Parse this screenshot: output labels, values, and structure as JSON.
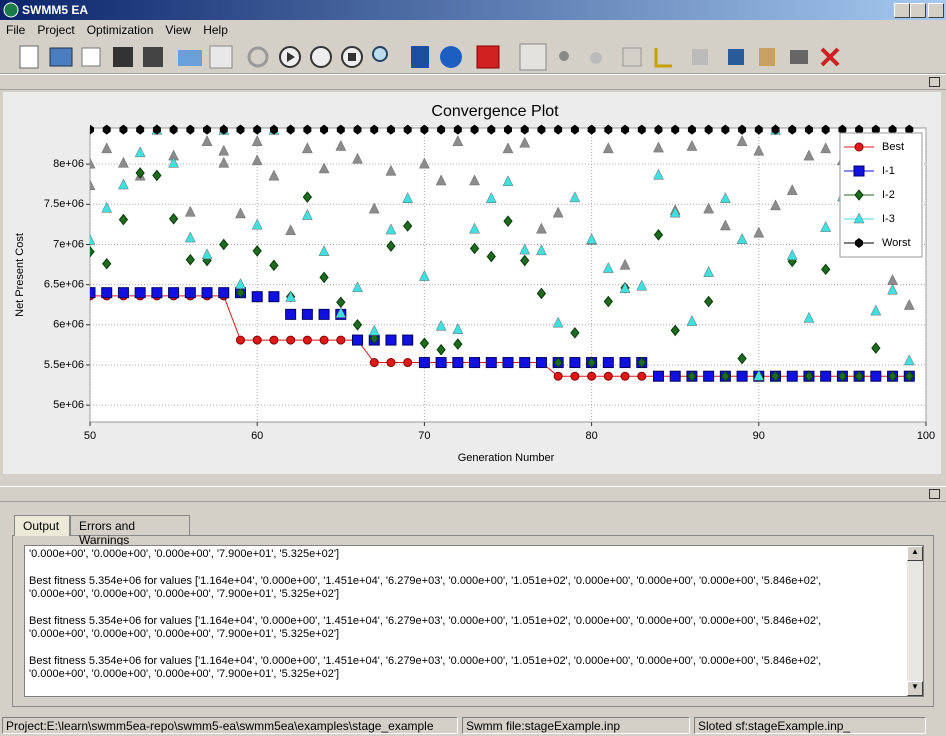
{
  "window": {
    "title": "SWMM5 EA"
  },
  "menu": [
    "File",
    "Project",
    "Optimization",
    "View",
    "Help"
  ],
  "chart_data": {
    "type": "scatter",
    "title": "Convergence Plot",
    "x_label": "Generation Number",
    "y_label": "Net Present Cost",
    "xlim": [
      50,
      100
    ],
    "xticks": [
      50,
      60,
      70,
      80,
      90,
      100
    ],
    "ylim": [
      4790000.0,
      8450000.0
    ],
    "yticks": [
      {
        "value": 5000000.0,
        "label": "5e+06"
      },
      {
        "value": 5500000.0,
        "label": "5.5e+06"
      },
      {
        "value": 6000000.0,
        "label": "6e+06"
      },
      {
        "value": 6500000.0,
        "label": "6.5e+06"
      },
      {
        "value": 7000000.0,
        "label": "7e+06"
      },
      {
        "value": 7500000.0,
        "label": "7.5e+06"
      },
      {
        "value": 8000000.0,
        "label": "8e+06"
      }
    ],
    "grid": true,
    "legend": "upper right",
    "x": [
      50,
      51,
      52,
      53,
      54,
      55,
      56,
      57,
      58,
      59,
      60,
      61,
      62,
      63,
      64,
      65,
      66,
      67,
      68,
      69,
      70,
      71,
      72,
      73,
      74,
      75,
      76,
      77,
      78,
      79,
      80,
      81,
      82,
      83,
      84,
      85,
      86,
      87,
      88,
      89,
      90,
      91,
      92,
      93,
      94,
      95,
      96,
      97,
      98,
      99
    ],
    "series": [
      {
        "x": [
          50,
          50,
          51,
          52,
          53,
          55,
          56,
          57,
          58,
          58,
          59,
          60,
          60,
          61,
          62,
          63,
          64,
          65,
          66,
          67,
          68,
          70,
          71,
          72,
          73,
          75,
          76,
          77,
          78,
          80,
          81,
          82,
          84,
          85,
          86,
          87,
          88,
          89,
          90,
          90,
          91,
          92,
          93,
          94,
          95,
          96,
          97,
          98,
          99
        ],
        "values": [
          8000000.0,
          7730000.0,
          8190000.0,
          8010000.0,
          7850000.0,
          8100000.0,
          7400000.0,
          8280000.0,
          8010000.0,
          8160000.0,
          7380000.0,
          8040000.0,
          8280000.0,
          7850000.0,
          7170000.0,
          8190000.0,
          7940000.0,
          8220000.0,
          8060000.0,
          7440000.0,
          7910000.0,
          8000000.0,
          7790000.0,
          8280000.0,
          7790000.0,
          8190000.0,
          8260000.0,
          7190000.0,
          7390000.0,
          7050000.0,
          8190000.0,
          6740000.0,
          8200000.0,
          7420000.0,
          8220000.0,
          7440000.0,
          7230000.0,
          8280000.0,
          8160000.0,
          7140000.0,
          7480000.0,
          7670000.0,
          8100000.0,
          8190000.0,
          8040000.0,
          7730000.0,
          8280000.0,
          6550000.0,
          6240000.0
        ],
        "color": "#8c8c8c",
        "marker": "triangle"
      },
      {
        "name": "Best",
        "color": "#e01818",
        "marker": "circle",
        "line": true,
        "values": [
          6360000.0,
          6360000.0,
          6360000.0,
          6360000.0,
          6360000.0,
          6360000.0,
          6360000.0,
          6360000.0,
          6360000.0,
          5810000.0,
          5810000.0,
          5810000.0,
          5810000.0,
          5810000.0,
          5810000.0,
          5810000.0,
          5810000.0,
          5530000.0,
          5530000.0,
          5530000.0,
          5530000.0,
          5530000.0,
          5530000.0,
          5530000.0,
          5530000.0,
          5530000.0,
          5530000.0,
          5530000.0,
          5360000.0,
          5360000.0,
          5360000.0,
          5360000.0,
          5360000.0,
          5360000.0,
          5360000.0,
          5360000.0,
          5360000.0,
          5360000.0,
          5360000.0,
          5360000.0,
          5360000.0,
          5360000.0,
          5360000.0,
          5360000.0,
          5360000.0,
          5360000.0,
          5360000.0,
          5360000.0,
          5360000.0,
          5360000.0
        ]
      },
      {
        "name": "I-1",
        "color": "#1010e0",
        "marker": "square",
        "values": [
          6400000.0,
          6400000.0,
          6400000.0,
          6400000.0,
          6400000.0,
          6400000.0,
          6400000.0,
          6400000.0,
          6400000.0,
          6400000.0,
          6350000.0,
          6350000.0,
          6130000.0,
          6130000.0,
          6130000.0,
          6130000.0,
          5810000.0,
          5810000.0,
          5810000.0,
          5810000.0,
          5530000.0,
          5530000.0,
          5530000.0,
          5530000.0,
          5530000.0,
          5530000.0,
          5530000.0,
          5530000.0,
          5530000.0,
          5530000.0,
          5530000.0,
          5530000.0,
          5530000.0,
          5530000.0,
          5360000.0,
          5360000.0,
          5360000.0,
          5360000.0,
          5360000.0,
          5360000.0,
          5360000.0,
          5360000.0,
          5360000.0,
          5360000.0,
          5360000.0,
          5360000.0,
          5360000.0,
          5360000.0,
          5360000.0,
          5360000.0
        ]
      },
      {
        "name": "I-2",
        "color": "#1d6b1d",
        "marker": "diamond",
        "values": [
          6910000.0,
          6760000.0,
          7310000.0,
          7890000.0,
          7860000.0,
          7320000.0,
          6810000.0,
          6800000.0,
          7000000.0,
          6400000.0,
          6920000.0,
          6740000.0,
          6350000.0,
          7590000.0,
          6590000.0,
          6280000.0,
          6000000.0,
          5830000.0,
          6980000.0,
          7230000.0,
          5770000.0,
          5690000.0,
          5760000.0,
          6950000.0,
          6850000.0,
          7290000.0,
          6800000.0,
          6390000.0,
          5530000.0,
          5900000.0,
          5530000.0,
          6290000.0,
          6460000.0,
          5530000.0,
          7120000.0,
          5930000.0,
          5360000.0,
          6290000.0,
          5360000.0,
          5580000.0,
          5360000.0,
          5360000.0,
          6790000.0,
          5360000.0,
          6690000.0,
          5360000.0,
          5360000.0,
          5710000.0,
          5360000.0,
          5360000.0
        ]
      },
      {
        "name": "I-3",
        "color": "#3ee0e0",
        "marker": "triangle",
        "values": [
          7050000.0,
          7450000.0,
          7740000.0,
          8140000.0,
          8420000.0,
          8010000.0,
          7080000.0,
          6870000.0,
          8420000.0,
          6500000.0,
          7240000.0,
          8420000.0,
          6340000.0,
          7360000.0,
          6910000.0,
          6140000.0,
          6460000.0,
          5920000.0,
          7180000.0,
          7570000.0,
          6600000.0,
          5980000.0,
          5940000.0,
          7190000.0,
          7570000.0,
          7780000.0,
          6930000.0,
          6920000.0,
          6020000.0,
          7580000.0,
          7060000.0,
          6700000.0,
          6450000.0,
          6480000.0,
          7860000.0,
          7390000.0,
          6040000.0,
          6650000.0,
          7570000.0,
          7060000.0,
          5360000.0,
          8420000.0,
          6860000.0,
          6080000.0,
          7210000.0,
          7590000.0,
          7570000.0,
          6170000.0,
          6430000.0,
          5550000.0
        ]
      },
      {
        "name": "Worst",
        "color": "#000000",
        "marker": "hexagon",
        "values": [
          8430000.0,
          8430000.0,
          8430000.0,
          8430000.0,
          8430000.0,
          8430000.0,
          8430000.0,
          8430000.0,
          8430000.0,
          8430000.0,
          8430000.0,
          8430000.0,
          8430000.0,
          8430000.0,
          8430000.0,
          8430000.0,
          8430000.0,
          8430000.0,
          8430000.0,
          8430000.0,
          8430000.0,
          8430000.0,
          8430000.0,
          8430000.0,
          8430000.0,
          8430000.0,
          8430000.0,
          8430000.0,
          8430000.0,
          8430000.0,
          8430000.0,
          8430000.0,
          8430000.0,
          8430000.0,
          8430000.0,
          8430000.0,
          8430000.0,
          8430000.0,
          8430000.0,
          8430000.0,
          8430000.0,
          8430000.0,
          8430000.0,
          8430000.0,
          8430000.0,
          8430000.0,
          8430000.0,
          8430000.0,
          8430000.0,
          8430000.0
        ]
      }
    ]
  },
  "tabs": [
    "Output",
    "Errors and Warnings"
  ],
  "output": [
    [
      "'0.000e+00', '0.000e+00', '0.000e+00', '7.900e+01', '5.325e+02']"
    ],
    [
      "Best fitness 5.354e+06 for values ['1.164e+04', '0.000e+00', '1.451e+04', '6.279e+03', '0.000e+00', '1.051e+02', '0.000e+00', '0.000e+00', '0.000e+00', '5.846e+02',",
      "'0.000e+00', '0.000e+00', '0.000e+00', '7.900e+01', '5.325e+02']"
    ],
    [
      "Best fitness 5.354e+06 for values ['1.164e+04', '0.000e+00', '1.451e+04', '6.279e+03', '0.000e+00', '1.051e+02', '0.000e+00', '0.000e+00', '0.000e+00', '5.846e+02',",
      "'0.000e+00', '0.000e+00', '0.000e+00', '7.900e+01', '5.325e+02']"
    ],
    [
      "Best fitness 5.354e+06 for values ['1.164e+04', '0.000e+00', '1.451e+04', '6.279e+03', '0.000e+00', '1.051e+02', '0.000e+00', '0.000e+00', '0.000e+00', '5.846e+02',",
      "'0.000e+00', '0.000e+00', '0.000e+00', '7.900e+01', '5.325e+02']"
    ]
  ],
  "status": [
    "Project:E:\\learn\\swmm5ea-repo\\swmm5-ea\\swmm5ea\\examples\\stage_example",
    "Swmm file:stageExample.inp",
    "Sloted sf:stageExample.inp_"
  ]
}
